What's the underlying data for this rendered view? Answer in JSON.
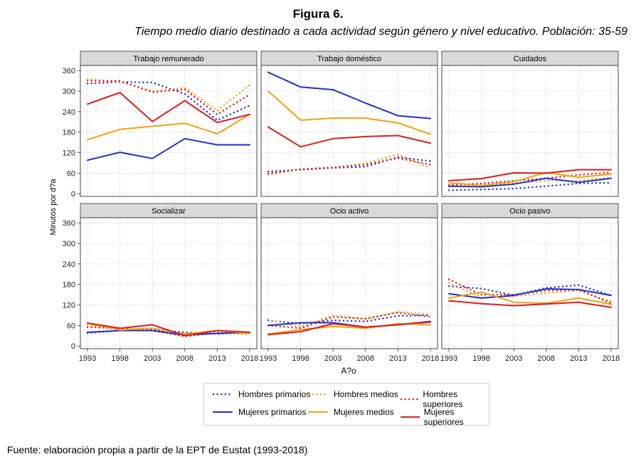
{
  "figure": {
    "title": "Figura 6.",
    "subtitle": "Tiempo medio diario destinado a cada actividad según género y nivel educativo. Población: 35-59",
    "source": "Fuente: elaboración propia a partir de la EPT de Eustat (1993-2018)"
  },
  "chart_data": {
    "type": "line",
    "xlabel": "A?o",
    "ylabel": "Minutos por d?a",
    "x": [
      1993,
      1998,
      2003,
      2008,
      2013,
      2018
    ],
    "x_tick_labels": [
      "1993",
      "1998",
      "2003",
      "2008",
      "2013",
      "2018"
    ],
    "ylim": [
      -8,
      375
    ],
    "yticks": [
      0,
      60,
      120,
      180,
      240,
      300,
      360
    ],
    "y_tick_labels": [
      "0",
      "60",
      "120",
      "180",
      "240",
      "300",
      "360"
    ],
    "grid": true,
    "legend_position": "bottom",
    "series_styles": [
      {
        "name": "Hombres primarios",
        "color": "#1f2fd1",
        "dashed": true
      },
      {
        "name": "Hombres medios",
        "color": "#f2a20e",
        "dashed": true
      },
      {
        "name": "Hombres superiores",
        "color": "#e01a1a",
        "dashed": true
      },
      {
        "name": "Mujeres primarios",
        "color": "#1f2fd1",
        "dashed": false
      },
      {
        "name": "Mujeres medios",
        "color": "#f2a20e",
        "dashed": false
      },
      {
        "name": "Mujeres superiores",
        "color": "#e01a1a",
        "dashed": false
      }
    ],
    "panels": [
      {
        "title": "Trabajo remunerado",
        "series": [
          {
            "name": "Hombres primarios",
            "values": [
              322,
              327,
              325,
              292,
              215,
              258
            ]
          },
          {
            "name": "Hombres medios",
            "values": [
              335,
              328,
              300,
              310,
              243,
              318
            ]
          },
          {
            "name": "Hombres superiores",
            "values": [
              330,
              330,
              297,
              305,
              232,
              290
            ]
          },
          {
            "name": "Mujeres primarios",
            "values": [
              98,
              121,
              103,
              161,
              143,
              143
            ]
          },
          {
            "name": "Mujeres medios",
            "values": [
              158,
              188,
              197,
              206,
              175,
              232
            ]
          },
          {
            "name": "Mujeres superiores",
            "values": [
              262,
              296,
              211,
              272,
              208,
              232
            ]
          }
        ]
      },
      {
        "title": "Trabajo doméstico",
        "series": [
          {
            "name": "Hombres primarios",
            "values": [
              65,
              70,
              75,
              79,
              107,
              95
            ]
          },
          {
            "name": "Hombres medios",
            "values": [
              55,
              72,
              75,
              88,
              115,
              75
            ]
          },
          {
            "name": "Hombres superiores",
            "values": [
              59,
              71,
              77,
              85,
              104,
              85
            ]
          },
          {
            "name": "Mujeres primarios",
            "values": [
              355,
              312,
              304,
              265,
              228,
              220
            ]
          },
          {
            "name": "Mujeres medios",
            "values": [
              300,
              215,
              221,
              221,
              207,
              174
            ]
          },
          {
            "name": "Mujeres superiores",
            "values": [
              195,
              137,
              161,
              167,
              170,
              148
            ]
          }
        ]
      },
      {
        "title": "Cuidados",
        "series": [
          {
            "name": "Hombres primarios",
            "values": [
              10,
              12,
              15,
              22,
              30,
              32
            ]
          },
          {
            "name": "Hombres medios",
            "values": [
              20,
              26,
              30,
              38,
              38,
              47
            ]
          },
          {
            "name": "Hombres superiores",
            "values": [
              25,
              30,
              38,
              45,
              55,
              62
            ]
          },
          {
            "name": "Mujeres primarios",
            "values": [
              22,
              20,
              28,
              45,
              33,
              45
            ]
          },
          {
            "name": "Mujeres medios",
            "values": [
              32,
              24,
              35,
              62,
              48,
              57
            ]
          },
          {
            "name": "Mujeres superiores",
            "values": [
              38,
              44,
              61,
              60,
              70,
              70
            ]
          }
        ]
      },
      {
        "title": "Socializar",
        "series": [
          {
            "name": "Hombres primarios",
            "values": [
              38,
              45,
              48,
              40,
              35,
              40
            ]
          },
          {
            "name": "Hombres medios",
            "values": [
              62,
              48,
              45,
              30,
              40,
              33
            ]
          },
          {
            "name": "Hombres superiores",
            "values": [
              55,
              52,
              45,
              28,
              38,
              38
            ]
          },
          {
            "name": "Mujeres primarios",
            "values": [
              40,
              45,
              45,
              32,
              37,
              40
            ]
          },
          {
            "name": "Mujeres medios",
            "values": [
              67,
              47,
              52,
              35,
              45,
              37
            ]
          },
          {
            "name": "Mujeres superiores",
            "values": [
              67,
              52,
              62,
              30,
              45,
              40
            ]
          }
        ]
      },
      {
        "title": "Ocio activo",
        "series": [
          {
            "name": "Hombres primarios",
            "values": [
              75,
              65,
              75,
              72,
              88,
              90
            ]
          },
          {
            "name": "Hombres medios",
            "values": [
              78,
              55,
              90,
              78,
              100,
              93
            ]
          },
          {
            "name": "Hombres superiores",
            "values": [
              60,
              52,
              85,
              80,
              98,
              85
            ]
          },
          {
            "name": "Mujeres primarios",
            "values": [
              60,
              68,
              68,
              55,
              62,
              70
            ]
          },
          {
            "name": "Mujeres medios",
            "values": [
              35,
              48,
              57,
              52,
              65,
              62
            ]
          },
          {
            "name": "Mujeres superiores",
            "values": [
              33,
              42,
              65,
              55,
              62,
              72
            ]
          }
        ]
      },
      {
        "title": "Ocio pasivo",
        "series": [
          {
            "name": "Hombres primarios",
            "values": [
              175,
              168,
              148,
              170,
              178,
              148
            ]
          },
          {
            "name": "Hombres medios",
            "values": [
              185,
              142,
              145,
              155,
              162,
              130
            ]
          },
          {
            "name": "Hombres superiores",
            "values": [
              195,
              150,
              150,
              162,
              165,
              125
            ]
          },
          {
            "name": "Mujeres primarios",
            "values": [
              153,
              140,
              148,
              167,
              165,
              148
            ]
          },
          {
            "name": "Mujeres medios",
            "values": [
              140,
              158,
              128,
              125,
              140,
              122
            ]
          },
          {
            "name": "Mujeres superiores",
            "values": [
              132,
              124,
              118,
              123,
              128,
              113
            ]
          }
        ]
      }
    ]
  }
}
